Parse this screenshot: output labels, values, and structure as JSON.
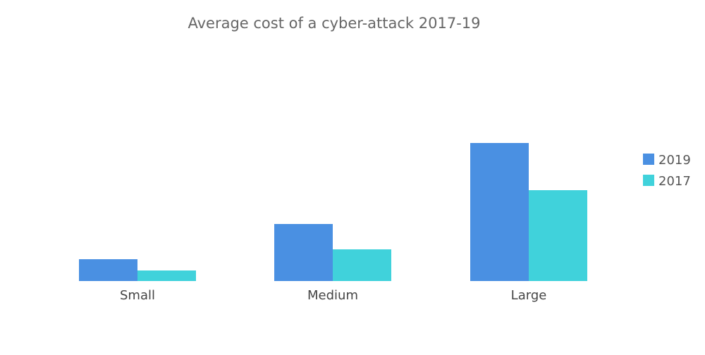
{
  "chart_data": {
    "type": "bar",
    "title": "Average cost of a cyber-attack 2017-19",
    "categories": [
      "Small",
      "Medium",
      "Large"
    ],
    "series": [
      {
        "name": "2019",
        "color": "#4a90e2",
        "values": [
          31,
          81,
          196
        ]
      },
      {
        "name": "2017",
        "color": "#40d2db",
        "values": [
          15,
          45,
          129
        ]
      }
    ],
    "ylim": [
      0,
      300
    ],
    "grid": false,
    "y_axis_visible": false,
    "legend_position": "right"
  }
}
